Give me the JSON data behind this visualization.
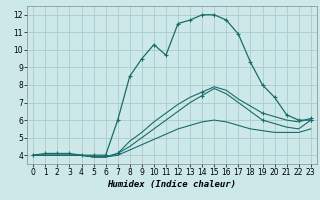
{
  "bg_color": "#cce8e8",
  "grid_color": "#aacccc",
  "line_color": "#1a6b6b",
  "marker_color": "#1a6b6b",
  "xlabel": "Humidex (Indice chaleur)",
  "xlim": [
    -0.5,
    23.5
  ],
  "ylim": [
    3.5,
    12.5
  ],
  "xticks": [
    0,
    1,
    2,
    3,
    4,
    5,
    6,
    7,
    8,
    9,
    10,
    11,
    12,
    13,
    14,
    15,
    16,
    17,
    18,
    19,
    20,
    21,
    22,
    23
  ],
  "yticks": [
    4,
    5,
    6,
    7,
    8,
    9,
    10,
    11,
    12
  ],
  "series": [
    [
      4.0,
      4.1,
      4.1,
      4.1,
      4.0,
      4.0,
      4.0,
      6.0,
      8.5,
      9.5,
      10.3,
      9.7,
      11.5,
      11.7,
      12.0,
      12.0,
      11.7,
      10.9,
      9.3,
      8.0,
      7.3,
      6.3,
      6.0,
      6.0
    ],
    [
      4.0,
      4.0,
      4.0,
      4.0,
      4.0,
      3.9,
      3.9,
      4.1,
      4.5,
      5.0,
      5.5,
      6.0,
      6.5,
      7.0,
      7.4,
      7.8,
      7.5,
      7.0,
      6.5,
      6.0,
      5.8,
      5.6,
      5.5,
      6.0
    ],
    [
      4.0,
      4.0,
      4.0,
      4.0,
      4.0,
      3.9,
      3.9,
      4.1,
      4.8,
      5.3,
      5.9,
      6.4,
      6.9,
      7.3,
      7.6,
      7.9,
      7.7,
      7.2,
      6.8,
      6.4,
      6.2,
      6.0,
      5.9,
      6.1
    ],
    [
      4.0,
      4.0,
      4.0,
      4.0,
      4.0,
      3.9,
      3.9,
      4.0,
      4.3,
      4.6,
      4.9,
      5.2,
      5.5,
      5.7,
      5.9,
      6.0,
      5.9,
      5.7,
      5.5,
      5.4,
      5.3,
      5.3,
      5.3,
      5.5
    ]
  ],
  "markers_s0": [
    0,
    1,
    2,
    3,
    4,
    5,
    6,
    7,
    8,
    9,
    10,
    11,
    12,
    13,
    14,
    15,
    16,
    17,
    18,
    19,
    20,
    21,
    22,
    23
  ],
  "markers_s1": [
    7,
    14,
    19,
    23
  ],
  "markers_s2": [
    7,
    14,
    19,
    23
  ],
  "markers_s3": []
}
